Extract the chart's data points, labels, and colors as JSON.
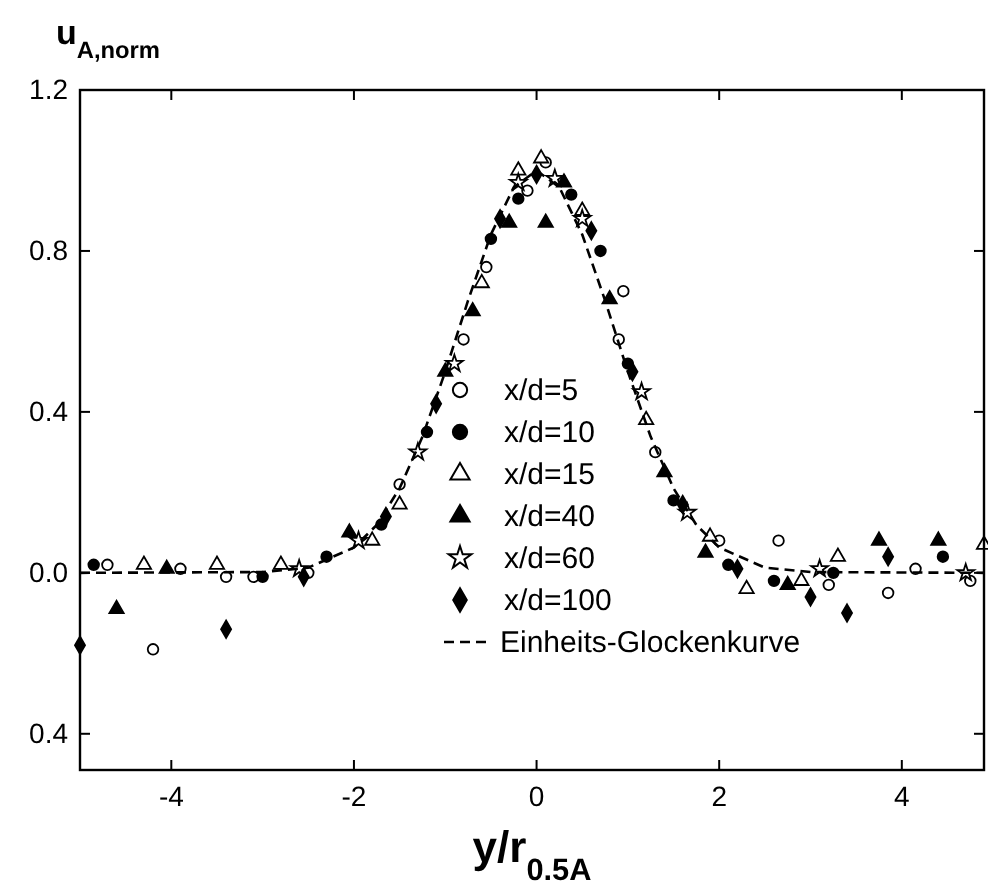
{
  "chart_data": {
    "type": "scatter",
    "xlabel": "y/r$_{0.5A}$",
    "ylabel": "u$_{A,norm}$",
    "xlim": [
      -5,
      4.9
    ],
    "ylim": [
      -0.49,
      1.2
    ],
    "xticks": [
      -4,
      -2,
      0,
      2,
      4
    ],
    "yticks": [
      {
        "value": -0.4,
        "label": "0.4"
      },
      {
        "value": 0,
        "label": "0.0"
      },
      0.4,
      0.8,
      1.2
    ],
    "legend": "bottom",
    "grid": false,
    "series": [
      {
        "name": "x/d=5",
        "color": "#ffffff",
        "marker": "circle",
        "x": [
          -4.7,
          -4.2,
          -3.9,
          -3.4,
          -3.1,
          -2.5,
          -1.5,
          -0.8,
          -0.55,
          -0.1,
          0.1,
          0.9,
          0.95,
          1.3,
          2.0,
          2.65,
          3.2,
          3.85,
          4.15,
          4.75
        ],
        "values": [
          0.02,
          -0.19,
          0.01,
          -0.01,
          -0.01,
          0.0,
          0.22,
          0.58,
          0.76,
          0.95,
          1.02,
          0.58,
          0.7,
          0.3,
          0.08,
          0.08,
          -0.03,
          -0.05,
          0.01,
          -0.02
        ]
      },
      {
        "name": "x/d=10",
        "color": "#000000",
        "marker": "circle",
        "x": [
          -4.85,
          -3.0,
          -2.3,
          -1.7,
          -1.2,
          -0.5,
          -0.2,
          0.38,
          0.7,
          1.0,
          1.5,
          2.1,
          2.6,
          3.25,
          4.45
        ],
        "values": [
          0.02,
          -0.01,
          0.04,
          0.12,
          0.35,
          0.83,
          0.93,
          0.94,
          0.8,
          0.52,
          0.18,
          0.02,
          -0.02,
          0.0,
          0.04
        ]
      },
      {
        "name": "x/d=15",
        "color": "#ffffff",
        "marker": "triangle",
        "x": [
          -4.3,
          -3.5,
          -2.8,
          -1.8,
          -1.5,
          -0.6,
          -0.2,
          0.05,
          0.5,
          1.2,
          1.9,
          2.3,
          2.9,
          3.3,
          4.9
        ],
        "values": [
          0.02,
          0.02,
          0.02,
          0.08,
          0.17,
          0.72,
          1.0,
          1.03,
          0.9,
          0.38,
          0.09,
          -0.04,
          -0.02,
          0.04,
          0.07
        ]
      },
      {
        "name": "x/d=40",
        "color": "#000000",
        "marker": "triangle",
        "x": [
          -4.6,
          -4.05,
          -2.05,
          -1.0,
          -0.7,
          -0.3,
          0.1,
          0.3,
          0.8,
          1.4,
          1.85,
          2.75,
          3.75,
          4.4
        ],
        "values": [
          -0.09,
          0.01,
          0.1,
          0.5,
          0.65,
          0.87,
          0.87,
          0.97,
          0.68,
          0.25,
          0.05,
          -0.03,
          0.08,
          0.08
        ]
      },
      {
        "name": "x/d=60",
        "color": "#ffffff",
        "marker": "star",
        "x": [
          -2.6,
          -1.95,
          -1.3,
          -0.9,
          -0.2,
          0.2,
          0.5,
          1.15,
          1.65,
          3.1,
          4.7
        ],
        "values": [
          0.01,
          0.08,
          0.3,
          0.52,
          0.97,
          0.98,
          0.88,
          0.45,
          0.15,
          0.01,
          0.0
        ]
      },
      {
        "name": "x/d=100",
        "color": "#000000",
        "marker": "diamond",
        "x": [
          -5.0,
          -3.4,
          -2.55,
          -1.65,
          -1.1,
          -0.4,
          0.0,
          0.6,
          1.05,
          1.6,
          2.2,
          3.0,
          3.4,
          3.85
        ],
        "values": [
          -0.18,
          -0.14,
          -0.01,
          0.14,
          0.42,
          0.88,
          0.99,
          0.85,
          0.5,
          0.17,
          0.01,
          -0.06,
          -0.1,
          0.04
        ]
      },
      {
        "name": "Einheits-Glockenkurve",
        "type": "line",
        "color": "#000000",
        "line_style": "dashed",
        "marker": "none",
        "x": [
          -5,
          -3,
          -2.5,
          -2,
          -1.75,
          -1.5,
          -1.25,
          -1,
          -0.75,
          -0.5,
          -0.25,
          0,
          0.25,
          0.5,
          0.75,
          1,
          1.25,
          1.5,
          1.75,
          2,
          2.5,
          3,
          4.9
        ],
        "values": [
          0,
          0.002,
          0.013,
          0.063,
          0.119,
          0.21,
          0.338,
          0.5,
          0.677,
          0.841,
          0.958,
          1,
          0.958,
          0.841,
          0.677,
          0.5,
          0.338,
          0.21,
          0.119,
          0.063,
          0.013,
          0.002,
          0
        ]
      }
    ]
  }
}
